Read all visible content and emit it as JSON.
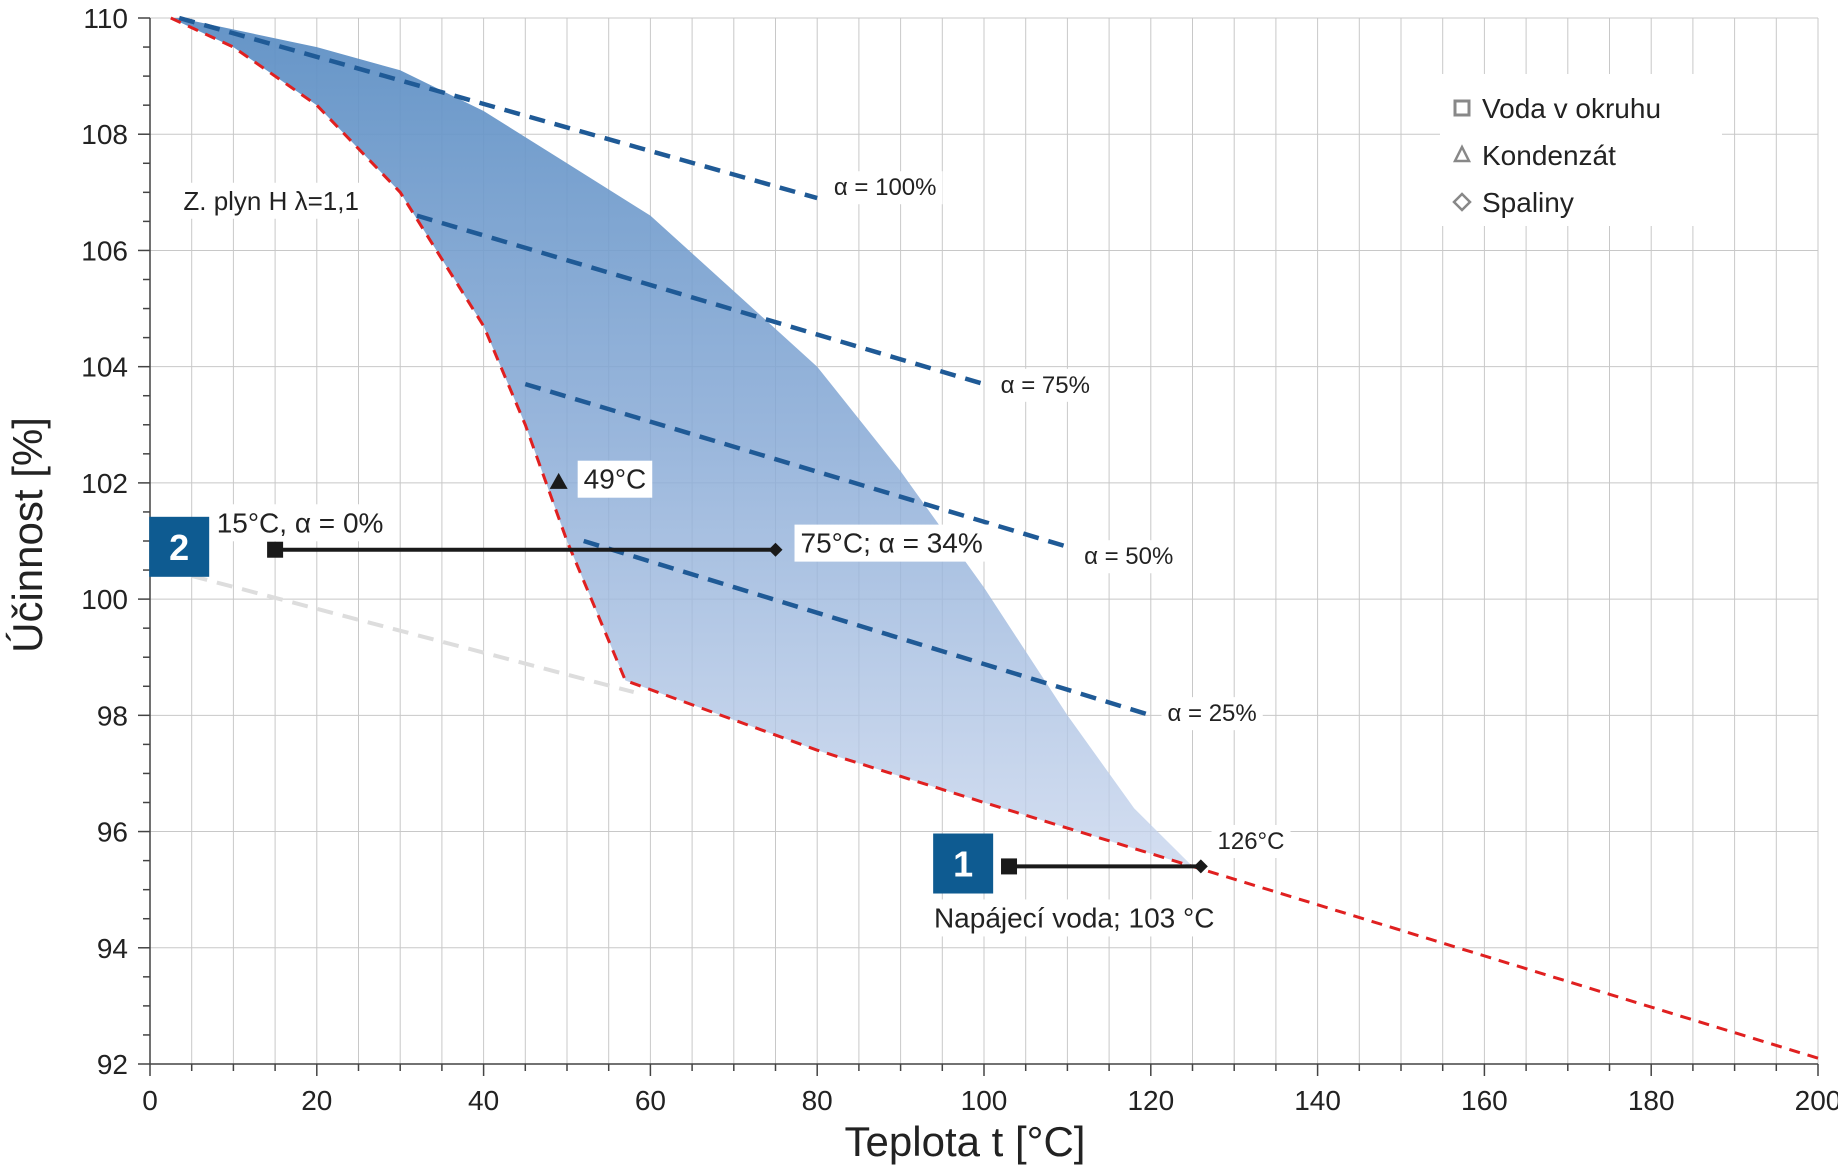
{
  "chart_data": {
    "type": "line",
    "xlabel": "Teplota t [°C]",
    "ylabel": "Účinnost  [%]",
    "xlim": [
      0,
      200
    ],
    "ylim": [
      92,
      110
    ],
    "x_ticks": [
      0,
      20,
      40,
      60,
      80,
      100,
      120,
      140,
      160,
      180,
      200
    ],
    "y_ticks": [
      92,
      94,
      96,
      98,
      100,
      102,
      104,
      106,
      108,
      110
    ],
    "grid": true,
    "series": [
      {
        "key": "natural_gas",
        "name": "Z. plyn H λ=1,1",
        "style": "dashed",
        "color": "#e02020",
        "points": [
          [
            2.5,
            110.0
          ],
          [
            10,
            109.5
          ],
          [
            20,
            108.5
          ],
          [
            30,
            107.0
          ],
          [
            40,
            104.7
          ],
          [
            45,
            103.0
          ],
          [
            50,
            101.0
          ],
          [
            57,
            98.6
          ],
          [
            80,
            97.4
          ],
          [
            100,
            96.5
          ],
          [
            125,
            95.4
          ],
          [
            150,
            94.3
          ],
          [
            175,
            93.2
          ],
          [
            200,
            92.1
          ]
        ]
      },
      {
        "key": "alpha_100",
        "name": "α = 100%",
        "style": "dashed",
        "color": "#1f5a96",
        "points": [
          [
            3.5,
            110.0
          ],
          [
            80,
            106.9
          ]
        ]
      },
      {
        "key": "alpha_75",
        "name": "α = 75%",
        "style": "dashed",
        "color": "#1f5a96",
        "points": [
          [
            32,
            106.6
          ],
          [
            100,
            103.7
          ]
        ]
      },
      {
        "key": "alpha_50",
        "name": "α = 50%",
        "style": "dashed",
        "color": "#1f5a96",
        "points": [
          [
            45,
            103.7
          ],
          [
            110,
            100.9
          ]
        ]
      },
      {
        "key": "alpha_25",
        "name": "α = 25%",
        "style": "dashed",
        "color": "#1f5a96",
        "points": [
          [
            52,
            101.0
          ],
          [
            120,
            98.0
          ]
        ]
      },
      {
        "key": "alpha_0",
        "name": "",
        "style": "dashed",
        "color": "#dddddd",
        "points": [
          [
            5,
            100.4
          ],
          [
            58,
            98.4
          ]
        ]
      }
    ],
    "shaded_region": {
      "color": "#4d85bf",
      "upper": [
        [
          3.5,
          110.0
        ],
        [
          20,
          109.5
        ],
        [
          30,
          109.1
        ],
        [
          40,
          108.4
        ],
        [
          50,
          107.5
        ],
        [
          60,
          106.6
        ],
        [
          70,
          105.3
        ],
        [
          80,
          104.0
        ],
        [
          90,
          102.2
        ],
        [
          100,
          100.2
        ],
        [
          110,
          98.0
        ],
        [
          118,
          96.4
        ],
        [
          125,
          95.4
        ]
      ]
    },
    "markers": [
      {
        "key": "p15",
        "type": "square",
        "x": 15,
        "y": 100.85
      },
      {
        "key": "p75",
        "type": "diamond",
        "x": 75,
        "y": 100.85
      },
      {
        "key": "p49",
        "type": "triangle",
        "x": 49,
        "y": 102.0
      },
      {
        "key": "p103",
        "type": "square",
        "x": 103,
        "y": 95.4
      },
      {
        "key": "p126",
        "type": "diamond",
        "x": 126,
        "y": 95.4
      }
    ],
    "segments": [
      {
        "key": "seg2",
        "x": [
          15,
          75
        ],
        "y": 100.85
      },
      {
        "key": "seg1",
        "x": [
          103,
          126
        ],
        "y": 95.4
      }
    ],
    "annotations": [
      {
        "key": "lbl_gas",
        "text": "Z. plyn H λ=1,1",
        "x": 4,
        "y": 106.7,
        "size": 26
      },
      {
        "key": "lbl_a100",
        "text": "α = 100%",
        "x": 82,
        "y": 106.95,
        "size": 24
      },
      {
        "key": "lbl_a75",
        "text": "α = 75%",
        "x": 102,
        "y": 103.55,
        "size": 24
      },
      {
        "key": "lbl_a50",
        "text": "α = 50%",
        "x": 112,
        "y": 100.6,
        "size": 24
      },
      {
        "key": "lbl_a25",
        "text": "α = 25%",
        "x": 122,
        "y": 97.9,
        "size": 24
      },
      {
        "key": "lbl_49",
        "text": "49°C",
        "x": 52,
        "y": 101.9,
        "size": 28
      },
      {
        "key": "lbl_15",
        "text": "15°C, α = 0%",
        "x": 8,
        "y": 101.15,
        "size": 28
      },
      {
        "key": "lbl_75",
        "text": "75°C; α = 34%",
        "x": 78,
        "y": 100.8,
        "size": 28
      },
      {
        "key": "lbl_126",
        "text": "126°C",
        "x": 128,
        "y": 95.7,
        "size": 24
      },
      {
        "key": "lbl_feed",
        "text": "Napájecí voda; 103 °C",
        "x": 94,
        "y": 94.35,
        "size": 28
      }
    ],
    "badges": [
      {
        "key": "badge2",
        "text": "2",
        "x": 3.5,
        "y": 100.9
      },
      {
        "key": "badge1",
        "text": "1",
        "x": 97.5,
        "y": 95.45
      }
    ],
    "legend": {
      "position": "top-right",
      "items": [
        {
          "label": "Voda v okruhu",
          "marker": "square"
        },
        {
          "label": "Kondenzát",
          "marker": "triangle"
        },
        {
          "label": "Spaliny",
          "marker": "diamond"
        }
      ]
    }
  }
}
